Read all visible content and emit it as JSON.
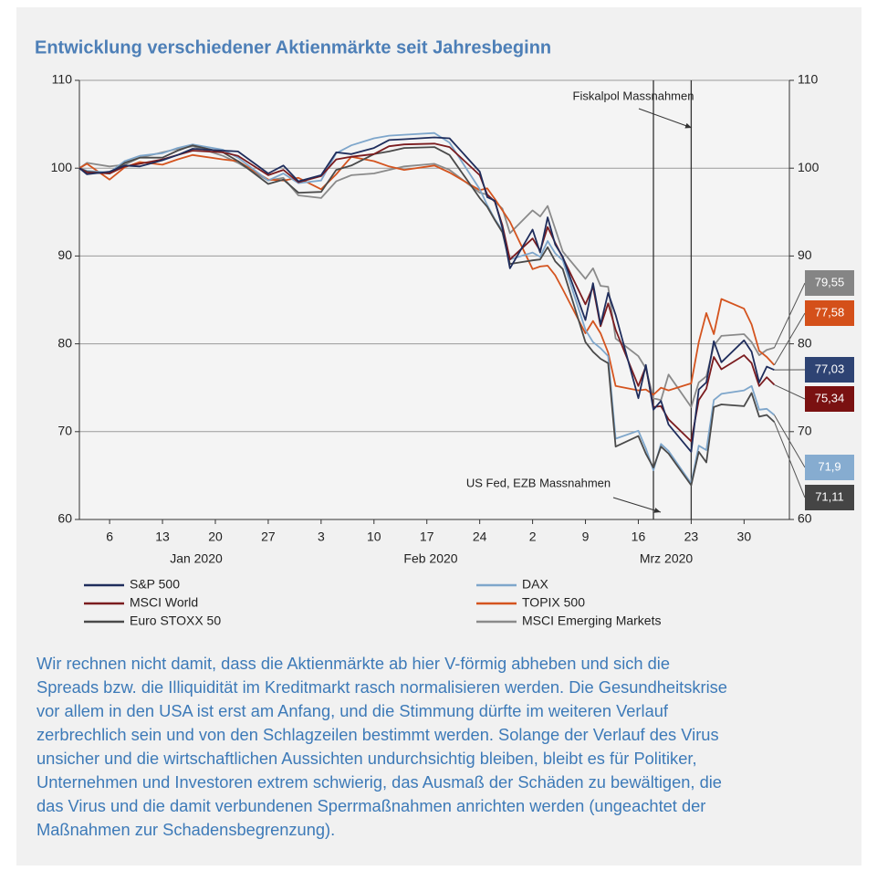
{
  "chart_data": {
    "type": "line",
    "title": "Entwicklung verschiedener Aktienmärkte seit Jahresbeginn",
    "x": [
      2,
      3,
      6,
      8,
      10,
      13,
      15,
      17,
      21,
      23,
      27,
      29,
      31,
      34,
      36,
      38,
      41,
      43,
      45,
      49,
      51,
      55,
      56,
      57,
      58,
      59,
      62,
      63,
      64,
      65,
      66,
      69,
      70,
      71,
      72,
      73,
      76,
      77,
      78,
      79,
      80,
      83,
      84,
      85,
      86,
      87,
      90,
      91,
      92,
      93,
      94
    ],
    "xlim": [
      2,
      96
    ],
    "xticks": [
      6,
      13,
      20,
      27,
      {
        "value": 34,
        "label": "3"
      },
      {
        "value": 41,
        "label": "10"
      },
      {
        "value": 48,
        "label": "17"
      },
      {
        "value": 55,
        "label": "24"
      },
      {
        "value": 62,
        "label": "2"
      },
      {
        "value": 69,
        "label": "9"
      },
      {
        "value": 76,
        "label": "16"
      },
      {
        "value": 83,
        "label": "23"
      },
      {
        "value": 90,
        "label": "30"
      }
    ],
    "month_labels": [
      "Jan 2020",
      "Feb 2020",
      "Mrz 2020"
    ],
    "ylim": [
      60,
      110
    ],
    "yticks": [
      60,
      70,
      80,
      90,
      100,
      110
    ],
    "y2lim": [
      60,
      110
    ],
    "y2ticks": [
      60,
      70,
      80,
      90,
      100,
      110
    ],
    "grid": true,
    "legend": "bottom",
    "series": [
      {
        "name": "S&P 500",
        "color": "#1f2d5c",
        "box_color": "#2e4373",
        "values": [
          100,
          99.3,
          99.6,
          100.3,
          100.2,
          100.9,
          101.5,
          102.2,
          102,
          101.9,
          99.4,
          100.3,
          98.5,
          99.2,
          101.8,
          101.6,
          102.3,
          103.2,
          103.3,
          103.5,
          103.4,
          99.6,
          96.7,
          96.3,
          93.2,
          88.6,
          93,
          90.4,
          94.4,
          91.3,
          89.9,
          82.7,
          86.9,
          82.2,
          85.8,
          83.3,
          73.8,
          77.6,
          72.5,
          73.5,
          70.8,
          67.7,
          74.8,
          75.6,
          80.3,
          77.9,
          80.4,
          79.1,
          75.6,
          77.4,
          77.03
        ],
        "end_label": "77,03"
      },
      {
        "name": "MSCI World",
        "color": "#7b1c1f",
        "box_color": "#7a1111",
        "values": [
          100,
          99.5,
          99.4,
          100.2,
          100.5,
          101,
          101.5,
          102,
          101.8,
          101.4,
          99.2,
          99.8,
          98.4,
          99.1,
          101,
          101.3,
          101.6,
          102.5,
          102.7,
          102.8,
          102.4,
          99.2,
          97,
          96.2,
          93.5,
          89.6,
          92,
          90.6,
          93.3,
          91.5,
          89.8,
          84.5,
          86.5,
          82,
          84.6,
          81.6,
          75.2,
          77.4,
          72.8,
          72.9,
          71.4,
          68.9,
          73.6,
          74.9,
          78.5,
          77.1,
          78.7,
          77.8,
          75.2,
          76.2,
          75.34
        ],
        "end_label": "75,34"
      },
      {
        "name": "Euro STOXX 50",
        "color": "#4a4a4a",
        "box_color": "#454545",
        "values": [
          100,
          99.6,
          99.4,
          100.6,
          101.2,
          101.2,
          102,
          102.6,
          101.8,
          100.8,
          98.2,
          98.7,
          97.2,
          97.3,
          99.8,
          100.3,
          101.6,
          101.9,
          102.3,
          102.4,
          101.5,
          96.6,
          95.6,
          94.1,
          92.7,
          89.1,
          89.5,
          89.6,
          91,
          89.4,
          88.5,
          80.2,
          79.1,
          78.3,
          77.8,
          68.3,
          69.5,
          67.5,
          65.9,
          68.3,
          67.5,
          63.9,
          67.7,
          66.5,
          72.8,
          73.1,
          72.9,
          74.4,
          71.7,
          71.9,
          71.11
        ],
        "end_label": "71,11"
      },
      {
        "name": "DAX",
        "color": "#7ea6cb",
        "box_color": "#86acd0",
        "values": [
          100,
          99.7,
          99.5,
          100.8,
          101.4,
          101.7,
          102.3,
          102.7,
          102.1,
          101.2,
          98.6,
          99.4,
          98.3,
          98.6,
          101.7,
          102.6,
          103.4,
          103.7,
          103.8,
          104,
          102.9,
          97.6,
          95.8,
          94.2,
          92.9,
          89.6,
          90.4,
          89.9,
          91.7,
          90.3,
          89.5,
          81.6,
          80.2,
          79.5,
          78.6,
          69.2,
          70.1,
          68.1,
          65.6,
          68.6,
          67.8,
          64.1,
          68.4,
          67.9,
          73.6,
          74.3,
          74.7,
          75.2,
          72.5,
          72.6,
          71.9
        ],
        "end_label": "71,9"
      },
      {
        "name": "TOPIX 500",
        "color": "#d4541f",
        "box_color": "#d4501a",
        "values": [
          100,
          100.5,
          98.7,
          100.1,
          100.7,
          100.4,
          101,
          101.5,
          101,
          100.8,
          98.7,
          98.6,
          98.9,
          97.6,
          99.3,
          101.3,
          100.8,
          100.2,
          99.8,
          100.3,
          99.5,
          97.5,
          97.7,
          96.5,
          95.2,
          93.9,
          88.5,
          88.8,
          88.9,
          87.8,
          86.2,
          81.2,
          82.6,
          81.2,
          79,
          75.2,
          74.7,
          74.8,
          74.2,
          75,
          74.7,
          75.5,
          80.2,
          83.5,
          81.1,
          85.1,
          84,
          82.2,
          79.2,
          78.5,
          77.58
        ],
        "end_label": "77,58"
      },
      {
        "name": "MSCI Emerging Markets",
        "color": "#8a8a8a",
        "box_color": "#858585",
        "values": [
          100,
          100.6,
          100.2,
          100.4,
          101.2,
          101.8,
          102.2,
          102.5,
          101.4,
          100.6,
          98.6,
          98.9,
          96.9,
          96.6,
          98.5,
          99.2,
          99.4,
          99.8,
          100.2,
          100.5,
          99.8,
          97.2,
          97,
          96.2,
          95.4,
          92.6,
          95.2,
          94.5,
          95.7,
          93.1,
          90.5,
          87.4,
          88.6,
          86.6,
          86.5,
          80.6,
          78.6,
          77.2,
          73.8,
          73.6,
          76.5,
          72.8,
          75.6,
          76.3,
          79.8,
          80.9,
          81.1,
          80.2,
          78.7,
          79.3,
          79.55
        ],
        "end_label": "79,55"
      }
    ],
    "annotations": [
      {
        "text": "US Fed, EZB Massnahmen",
        "x": 78
      },
      {
        "text": "Fiskalpol Massnahmen",
        "x": 83
      }
    ]
  },
  "text_lines": [
    "Wir rechnen nicht damit, dass die Aktienmärkte ab hier V-förmig abheben und sich die",
    "Spreads bzw. die Illiquidität im Kreditmarkt rasch normalisieren werden. Die Gesundheitskrise",
    "vor allem in den USA ist erst am Anfang, und die Stimmung dürfte im weiteren Verlauf",
    "zerbrechlich sein und von den Schlagzeilen bestimmt werden. Solange der Verlauf des Virus",
    "unsicher und die wirtschaftlichen Aussichten undurchsichtig bleiben, bleibt es für Politiker,",
    "Unternehmen und Investoren extrem schwierig, das Ausmaß der Schäden zu bewältigen, die",
    "das Virus und die damit verbundenen Sperrmaßnahmen anrichten werden (ungeachtet der",
    "Maßnahmen zur Schadensbegrenzung)."
  ]
}
